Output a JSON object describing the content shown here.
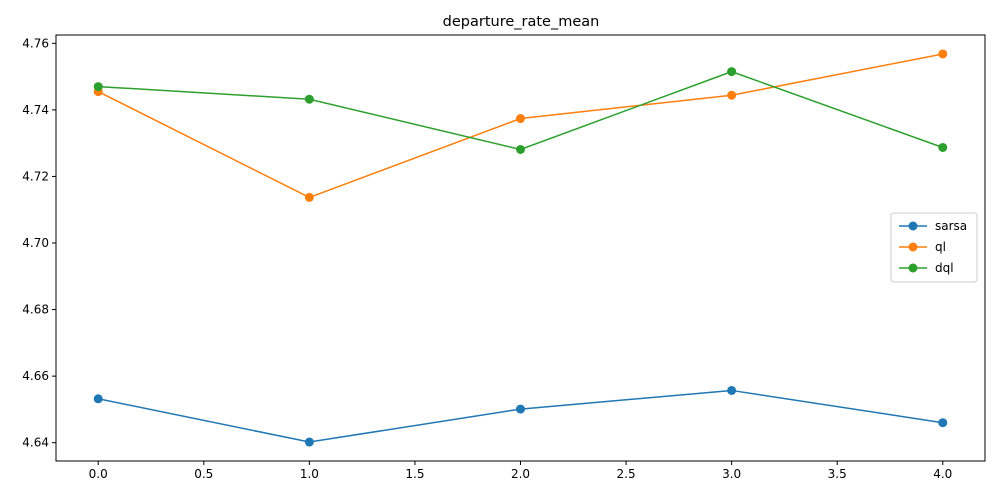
{
  "chart_data": {
    "type": "line",
    "title": "departure_rate_mean",
    "xlabel": "",
    "ylabel": "",
    "x": [
      0,
      1,
      2,
      3,
      4
    ],
    "xlim": [
      -0.2,
      4.2
    ],
    "ylim": [
      4.6345,
      4.7625
    ],
    "xticks": [
      0.0,
      0.5,
      1.0,
      1.5,
      2.0,
      2.5,
      3.0,
      3.5,
      4.0
    ],
    "xtick_labels": [
      "0.0",
      "0.5",
      "1.0",
      "1.5",
      "2.0",
      "2.5",
      "3.0",
      "3.5",
      "4.0"
    ],
    "yticks": [
      4.64,
      4.66,
      4.68,
      4.7,
      4.72,
      4.74,
      4.76
    ],
    "ytick_labels": [
      "4.64",
      "4.66",
      "4.68",
      "4.70",
      "4.72",
      "4.74",
      "4.76"
    ],
    "grid": false,
    "legend_position": "center-right",
    "series": [
      {
        "name": "sarsa",
        "color": "#1f77b4",
        "values": [
          4.6532,
          4.6402,
          4.6501,
          4.6557,
          4.646
        ]
      },
      {
        "name": "ql",
        "color": "#ff7f0e",
        "values": [
          4.7455,
          4.7137,
          4.7374,
          4.7444,
          4.7568
        ]
      },
      {
        "name": "dql",
        "color": "#2ca02c",
        "values": [
          4.747,
          4.7432,
          4.7281,
          4.7515,
          4.7287
        ]
      }
    ]
  }
}
